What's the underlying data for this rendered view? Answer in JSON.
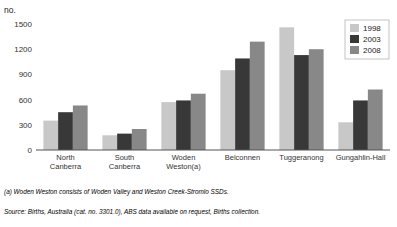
{
  "chart_data": {
    "type": "bar",
    "y_label": "no.",
    "categories": [
      "North\nCanberra",
      "South\nCanberra",
      "Woden\nWeston(a)",
      "Belconnen",
      "Tuggeranong",
      "Gungahlin-Hall"
    ],
    "series": [
      {
        "name": "1998",
        "color": "#c8c8c8",
        "values": [
          350,
          175,
          570,
          950,
          1460,
          330
        ]
      },
      {
        "name": "2003",
        "color": "#383838",
        "values": [
          450,
          195,
          590,
          1090,
          1130,
          590
        ]
      },
      {
        "name": "2008",
        "color": "#888888",
        "values": [
          530,
          250,
          670,
          1290,
          1200,
          720
        ]
      }
    ],
    "ylim": [
      0,
      1500
    ],
    "yticks": [
      0,
      300,
      600,
      900,
      1200,
      1500
    ],
    "grid": false,
    "legend": "upper right",
    "annotations": [
      "(a) Woden Weston consists of Woden Valley and Weston Creek-Stromlo SSDs.",
      "Source:  Births, Australia (cat. no. 3301.0), ABS data available on request,  Births collection."
    ]
  }
}
